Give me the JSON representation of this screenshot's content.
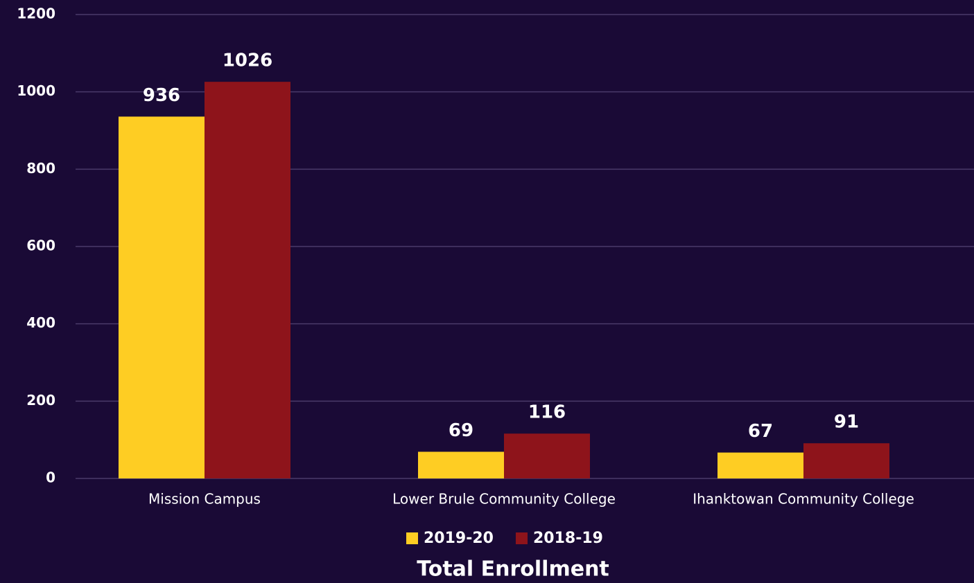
{
  "chart_data": {
    "type": "bar",
    "title": "Total Enrollment",
    "categories": [
      "Mission Campus",
      "Lower Brule Community College",
      "Ihanktowan Community College"
    ],
    "series": [
      {
        "name": "2019-20",
        "color": "#fecd23",
        "values": [
          936,
          69,
          67
        ]
      },
      {
        "name": "2018-19",
        "color": "#8e141b",
        "values": [
          1026,
          116,
          91
        ]
      }
    ],
    "ylim": [
      0,
      1200
    ],
    "yticks": [
      0,
      200,
      400,
      600,
      800,
      1000,
      1200
    ],
    "grid": true,
    "legend": "bottom"
  }
}
